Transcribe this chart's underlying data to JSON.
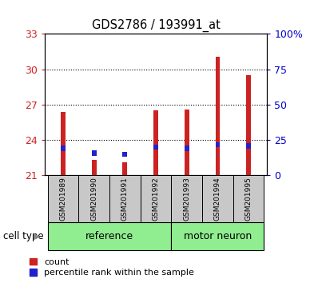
{
  "title": "GDS2786 / 193991_at",
  "samples": [
    "GSM201989",
    "GSM201990",
    "GSM201991",
    "GSM201992",
    "GSM201993",
    "GSM201994",
    "GSM201995"
  ],
  "red_values": [
    26.4,
    22.3,
    22.1,
    26.5,
    26.6,
    31.1,
    29.5
  ],
  "blue_values": [
    23.3,
    22.9,
    22.8,
    23.4,
    23.3,
    23.6,
    23.5
  ],
  "red_color": "#cc2222",
  "blue_color": "#2222cc",
  "y_min": 21,
  "y_max": 33,
  "y_ticks": [
    21,
    24,
    27,
    30,
    33
  ],
  "y2_labels": [
    "0",
    "25",
    "50",
    "75",
    "100%"
  ],
  "y2_ticks": [
    0,
    25,
    50,
    75,
    100
  ],
  "bar_width": 0.15,
  "blue_bar_height": 0.45,
  "legend_count": "count",
  "legend_pct": "percentile rank within the sample",
  "cell_type_label": "cell type",
  "red_axis_color": "#cc2222",
  "blue_axis_color": "#0000cc",
  "gray_bg": "#c8c8c8",
  "green_bg": "#90ee90",
  "ref_samples": [
    0,
    1,
    2,
    3
  ],
  "motor_samples": [
    4,
    5,
    6
  ],
  "ref_label": "reference",
  "motor_label": "motor neuron"
}
